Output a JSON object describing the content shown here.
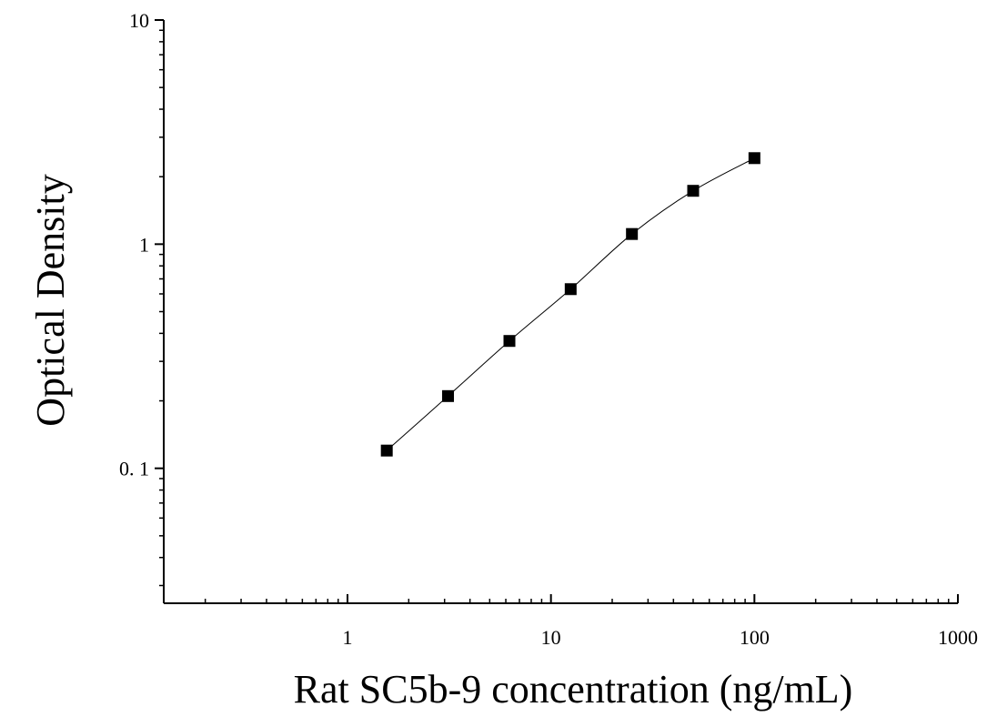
{
  "chart_data": {
    "type": "scatter",
    "title": "",
    "xlabel": "Rat SC5b-9 concentration (ng/mL)",
    "ylabel": "Optical Density",
    "x_scale": "log",
    "y_scale": "log",
    "xlim": [
      0.125,
      1000
    ],
    "ylim": [
      0.025,
      10
    ],
    "x_ticks": [
      {
        "value": 1,
        "label": "1"
      },
      {
        "value": 10,
        "label": "10"
      },
      {
        "value": 100,
        "label": "100"
      },
      {
        "value": 1000,
        "label": "1000"
      }
    ],
    "y_ticks": [
      {
        "value": 0.1,
        "label": "0. 1"
      },
      {
        "value": 1,
        "label": "1"
      },
      {
        "value": 10,
        "label": "10"
      }
    ],
    "grid": false,
    "legend": "none",
    "marker": "square",
    "color": "#000000",
    "series": [
      {
        "x": [
          1.56,
          3.12,
          6.25,
          12.5,
          25,
          50,
          100
        ],
        "y": [
          0.12,
          0.21,
          0.37,
          0.63,
          1.11,
          1.73,
          2.42
        ],
        "fit_curve": true
      }
    ]
  }
}
